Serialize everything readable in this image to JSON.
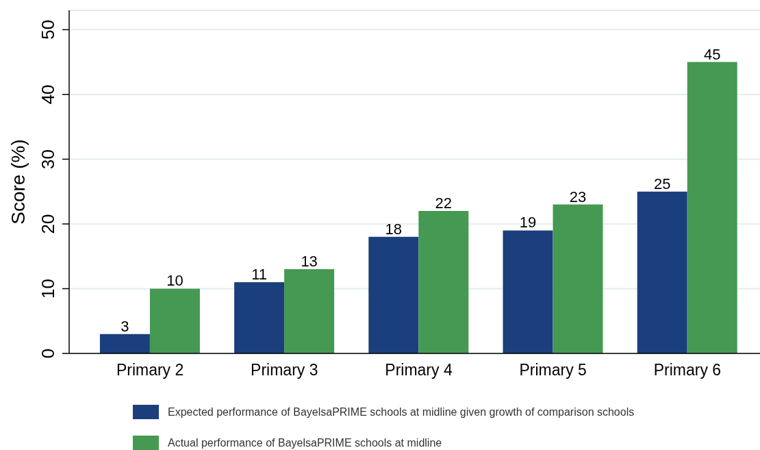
{
  "chart_data": {
    "type": "bar",
    "ylabel": "Score (%)",
    "categories": [
      "Primary 2",
      "Primary 3",
      "Primary 4",
      "Primary 5",
      "Primary 6"
    ],
    "series": [
      {
        "name": "Expected performance of BayelsaPRIME schools at midline given growth of comparison schools",
        "color": "#1b3f7c",
        "values": [
          3,
          11,
          18,
          19,
          25
        ]
      },
      {
        "name": "Actual performance of BayelsaPRIME schools at midline",
        "color": "#459953",
        "values": [
          10,
          13,
          22,
          23,
          45
        ]
      }
    ],
    "ylim": [
      0,
      53
    ],
    "yticks": [
      0,
      10,
      20,
      30,
      40,
      50
    ],
    "grid": "y",
    "legend": "bottom",
    "data_labels": true
  }
}
